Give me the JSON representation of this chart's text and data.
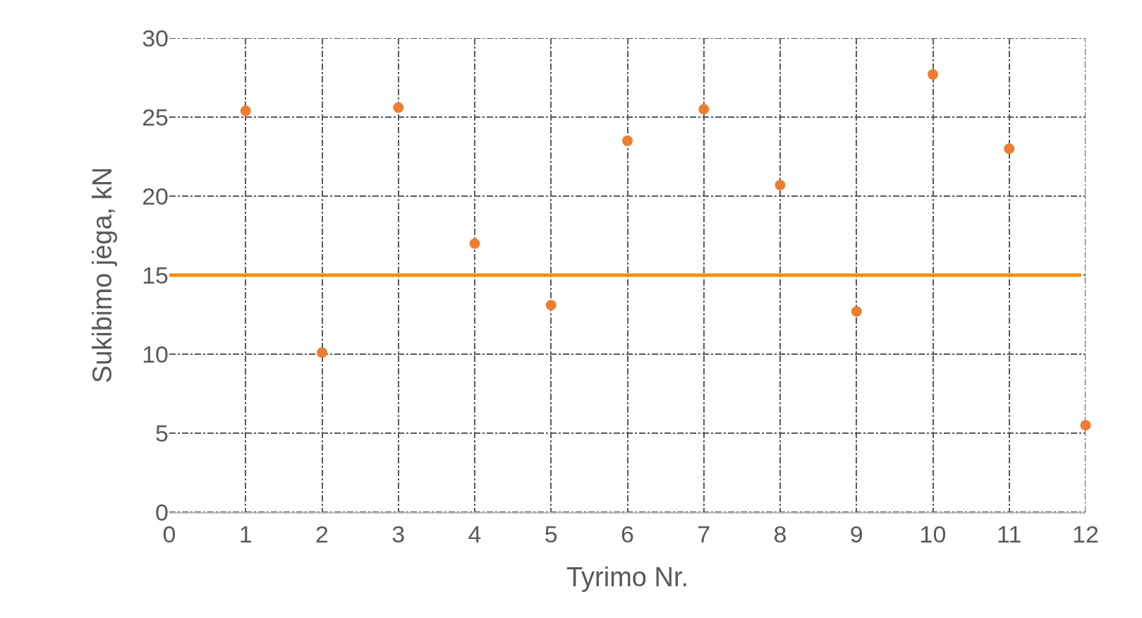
{
  "chart_data": {
    "type": "scatter",
    "xlabel": "Tyrimo Nr.",
    "ylabel": "Sukibimo jėga, kN",
    "x": [
      1,
      2,
      3,
      4,
      5,
      6,
      7,
      8,
      9,
      10,
      11,
      12
    ],
    "series": [
      {
        "color": "#ed7d31",
        "values": [
          25.4,
          10.1,
          25.6,
          17.0,
          13.1,
          23.5,
          25.5,
          20.7,
          12.7,
          27.7,
          23.0,
          5.5
        ]
      }
    ],
    "xlim": [
      0,
      12
    ],
    "xticks": [
      0,
      1,
      2,
      3,
      4,
      5,
      6,
      7,
      8,
      9,
      10,
      11,
      12
    ],
    "ylim": [
      0,
      30
    ],
    "yticks": [
      0,
      5,
      10,
      15,
      20,
      25,
      30
    ],
    "ref_lines": [
      {
        "axis": "y",
        "value": 15,
        "color": "#f39200",
        "line_style": "solid"
      }
    ],
    "grid": true,
    "marker": "circle"
  }
}
